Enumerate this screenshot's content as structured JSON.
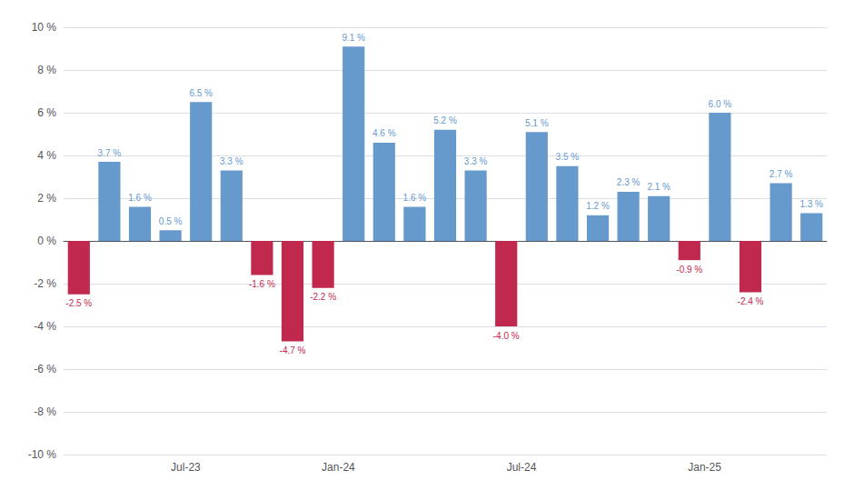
{
  "chart_data": {
    "type": "bar",
    "categories": [
      null,
      null,
      null,
      null,
      "Jul-23",
      null,
      null,
      null,
      null,
      "Jan-24",
      null,
      null,
      null,
      null,
      null,
      "Jul-24",
      null,
      null,
      null,
      null,
      null,
      "Jan-25",
      null,
      null,
      null
    ],
    "values": [
      -2.5,
      3.7,
      1.6,
      0.5,
      6.5,
      3.3,
      -1.6,
      -4.7,
      -2.2,
      9.1,
      4.6,
      1.6,
      5.2,
      3.3,
      -4.0,
      5.1,
      3.5,
      1.2,
      2.3,
      2.1,
      -0.9,
      6.0,
      -2.4,
      2.7,
      1.3
    ],
    "value_labels": [
      "-2.5 %",
      "3.7 %",
      "1.6 %",
      "0.5 %",
      "6.5 %",
      "3.3 %",
      "-1.6 %",
      "-4.7 %",
      "-2.2 %",
      "9.1 %",
      "4.6 %",
      "1.6 %",
      "5.2 %",
      "3.3 %",
      "-4.0 %",
      "5.1 %",
      "3.5 %",
      "1.2 %",
      "2.3 %",
      "2.1 %",
      "-0.9 %",
      "6.0 %",
      "-2.4 %",
      "2.7 %",
      "1.3 %"
    ],
    "colors": [
      "#c0284e",
      "#6699cc",
      "#6699cc",
      "#6699cc",
      "#6699cc",
      "#6699cc",
      "#c0284e",
      "#c0284e",
      "#c0284e",
      "#6699cc",
      "#6699cc",
      "#6699cc",
      "#6699cc",
      "#6699cc",
      "#c0284e",
      "#6699cc",
      "#6699cc",
      "#6699cc",
      "#6699cc",
      "#6699cc",
      "#c0284e",
      "#6699cc",
      "#c0284e",
      "#6699cc",
      "#6699cc"
    ],
    "data_labels": true,
    "ylim": [
      -10,
      10
    ],
    "yticks": [
      {
        "value": -10,
        "label": "-10 %"
      },
      {
        "value": -8,
        "label": "-8 %"
      },
      {
        "value": -6,
        "label": "-6 %"
      },
      {
        "value": -4,
        "label": "-4 %"
      },
      {
        "value": -2,
        "label": "-2 %"
      },
      {
        "value": 0,
        "label": "0 %"
      },
      {
        "value": 2,
        "label": "2 %"
      },
      {
        "value": 4,
        "label": "4 %"
      },
      {
        "value": 6,
        "label": "6 %"
      },
      {
        "value": 8,
        "label": "8 %"
      },
      {
        "value": 10,
        "label": "10 %"
      }
    ],
    "grid": true
  }
}
